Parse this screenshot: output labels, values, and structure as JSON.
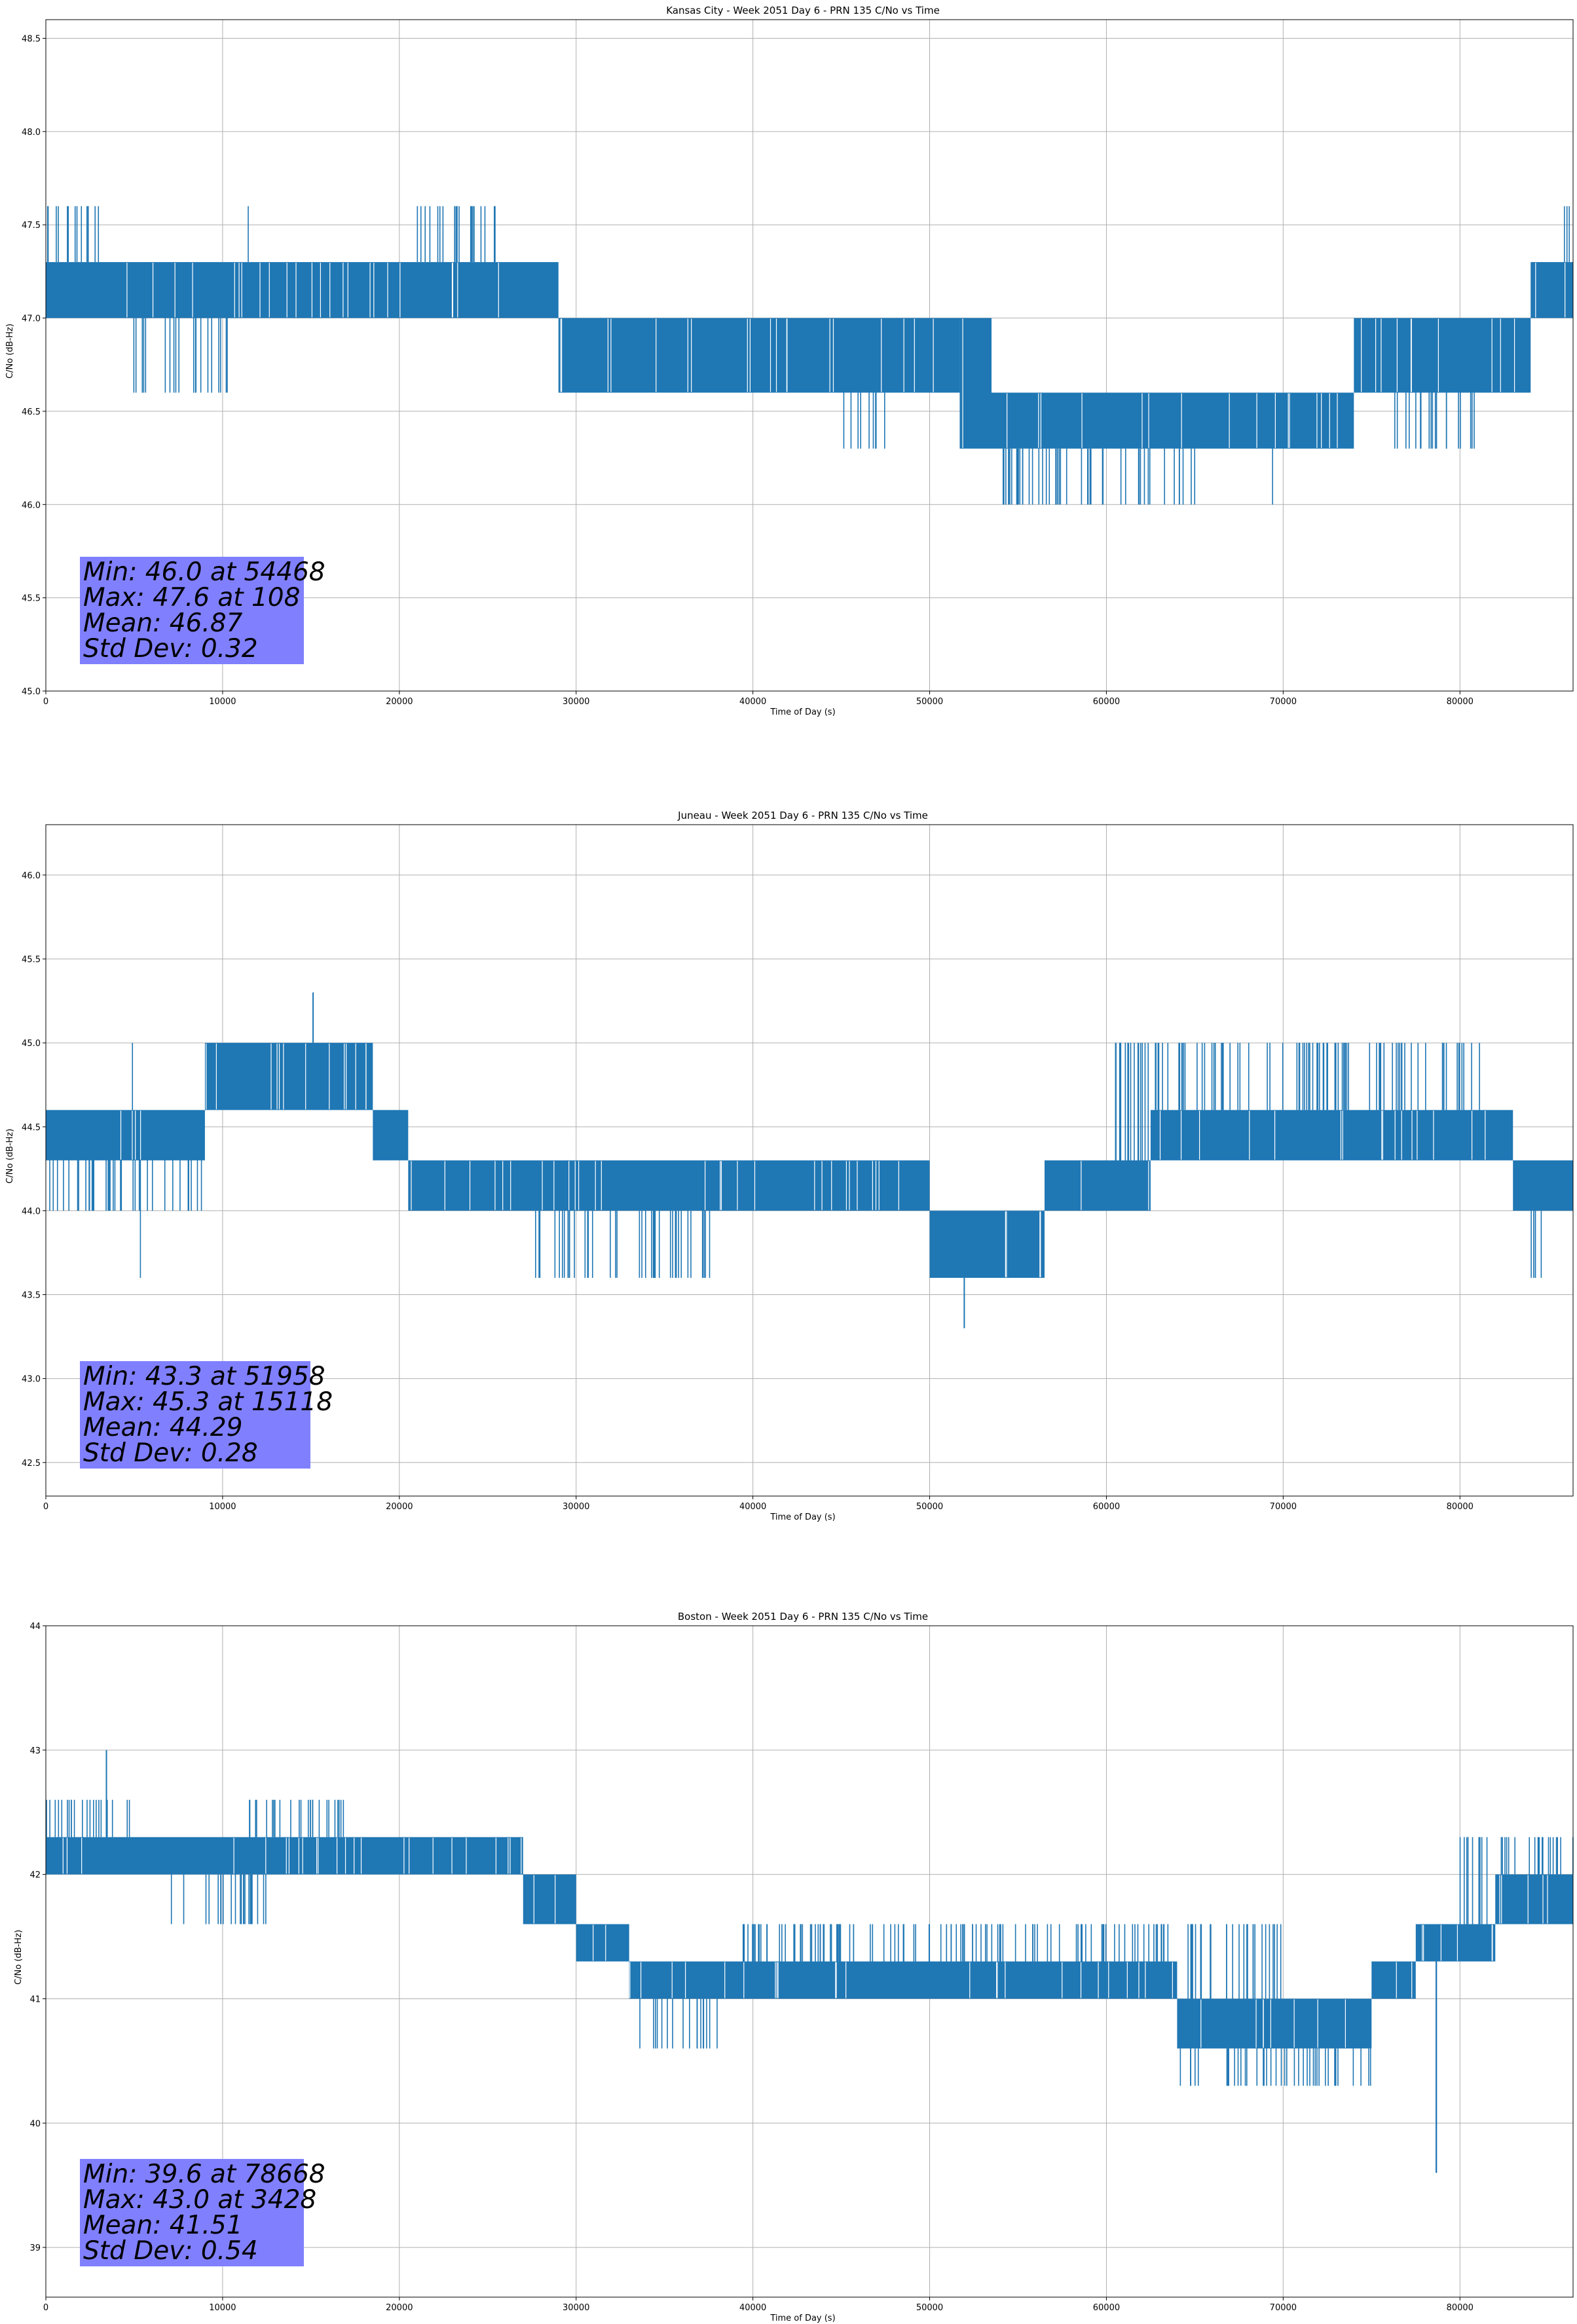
{
  "figure": {
    "background": "#ffffff",
    "series_color": "#1f77b4",
    "stats_box_color": "#8080ff"
  },
  "chart_data": [
    {
      "type": "line",
      "title": "Kansas City - Week 2051 Day 6 - PRN 135 C/No vs Time",
      "xlabel": "Time of Day (s)",
      "ylabel": "C/No (dB-Hz)",
      "xlim": [
        0,
        86400
      ],
      "ylim": [
        45.0,
        48.6
      ],
      "xticks": [
        0,
        10000,
        20000,
        30000,
        40000,
        50000,
        60000,
        70000,
        80000
      ],
      "yticks": [
        45.0,
        45.5,
        46.0,
        46.5,
        47.0,
        47.5,
        48.0,
        48.5
      ],
      "ytick_decimals": 1,
      "grid": true,
      "stats": [
        "Min: 46.0 at 54468",
        "Max: 47.6 at 108",
        "Mean: 46.87",
        "Std Dev: 0.32"
      ],
      "band_profile": [
        {
          "x_start": 0,
          "x_end": 29000,
          "low": 47.0,
          "high": 47.3
        },
        {
          "x_start": 29000,
          "x_end": 51700,
          "low": 46.6,
          "high": 47.0
        },
        {
          "x_start": 51700,
          "x_end": 53500,
          "low": 46.3,
          "high": 47.0
        },
        {
          "x_start": 53500,
          "x_end": 74000,
          "low": 46.3,
          "high": 46.6
        },
        {
          "x_start": 74000,
          "x_end": 84000,
          "low": 46.6,
          "high": 47.0
        },
        {
          "x_start": 84000,
          "x_end": 86400,
          "low": 47.0,
          "high": 47.3
        }
      ],
      "spikes_up": [
        {
          "x_start": 0,
          "x_end": 3000,
          "to": 47.6
        },
        {
          "x_start": 11400,
          "x_end": 11500,
          "to": 47.6
        },
        {
          "x_start": 21000,
          "x_end": 25500,
          "to": 47.6
        },
        {
          "x_start": 85500,
          "x_end": 86200,
          "to": 47.6
        }
      ],
      "spikes_down": [
        {
          "x_start": 4800,
          "x_end": 10300,
          "to": 46.6
        },
        {
          "x_start": 45000,
          "x_end": 47500,
          "to": 46.3
        },
        {
          "x_start": 54000,
          "x_end": 66000,
          "to": 46.0
        },
        {
          "x_start": 69300,
          "x_end": 69500,
          "to": 46.0
        },
        {
          "x_start": 76000,
          "x_end": 81000,
          "to": 46.3
        }
      ],
      "extreme_points": [
        {
          "x": 54468,
          "y": 46.0
        },
        {
          "x": 108,
          "y": 47.6
        }
      ]
    },
    {
      "type": "line",
      "title": "Juneau - Week 2051 Day 6 - PRN 135 C/No vs Time",
      "xlabel": "Time of Day (s)",
      "ylabel": "C/No (dB-Hz)",
      "xlim": [
        0,
        86400
      ],
      "ylim": [
        42.3,
        46.3
      ],
      "xticks": [
        0,
        10000,
        20000,
        30000,
        40000,
        50000,
        60000,
        70000,
        80000
      ],
      "yticks": [
        42.5,
        43.0,
        43.5,
        44.0,
        44.5,
        45.0,
        45.5,
        46.0
      ],
      "ytick_decimals": 1,
      "grid": true,
      "stats": [
        "Min: 43.3 at 51958",
        "Max: 45.3 at 15118",
        "Mean: 44.29",
        "Std Dev: 0.28"
      ],
      "band_profile": [
        {
          "x_start": 0,
          "x_end": 9000,
          "low": 44.3,
          "high": 44.6
        },
        {
          "x_start": 9000,
          "x_end": 18500,
          "low": 44.6,
          "high": 45.0
        },
        {
          "x_start": 18500,
          "x_end": 20500,
          "low": 44.3,
          "high": 44.6
        },
        {
          "x_start": 20500,
          "x_end": 50000,
          "low": 44.0,
          "high": 44.3
        },
        {
          "x_start": 50000,
          "x_end": 56500,
          "low": 43.6,
          "high": 44.0
        },
        {
          "x_start": 56500,
          "x_end": 62500,
          "low": 44.0,
          "high": 44.3
        },
        {
          "x_start": 62500,
          "x_end": 83000,
          "low": 44.3,
          "high": 44.6
        },
        {
          "x_start": 83000,
          "x_end": 86400,
          "low": 44.0,
          "high": 44.3
        }
      ],
      "spikes_up": [
        {
          "x_start": 4800,
          "x_end": 5000,
          "to": 45.0
        },
        {
          "x_start": 15100,
          "x_end": 15150,
          "to": 45.3
        },
        {
          "x_start": 60500,
          "x_end": 82500,
          "to": 45.0
        }
      ],
      "spikes_down": [
        {
          "x_start": 0,
          "x_end": 9000,
          "to": 44.0
        },
        {
          "x_start": 5300,
          "x_end": 5400,
          "to": 43.6
        },
        {
          "x_start": 27500,
          "x_end": 38000,
          "to": 43.6
        },
        {
          "x_start": 84000,
          "x_end": 85500,
          "to": 43.6
        }
      ],
      "extreme_points": [
        {
          "x": 51958,
          "y": 43.3
        },
        {
          "x": 15118,
          "y": 45.3
        }
      ]
    },
    {
      "type": "line",
      "title": "Boston - Week 2051 Day 6 - PRN 135 C/No vs Time",
      "xlabel": "Time of Day (s)",
      "ylabel": "C/No (dB-Hz)",
      "xlim": [
        0,
        86400
      ],
      "ylim": [
        38.6,
        44.0
      ],
      "xticks": [
        0,
        10000,
        20000,
        30000,
        40000,
        50000,
        60000,
        70000,
        80000
      ],
      "yticks": [
        39,
        40,
        41,
        42,
        43,
        44
      ],
      "ytick_decimals": 0,
      "grid": true,
      "stats": [
        "Min: 39.6 at 78668",
        "Max: 43.0 at 3428",
        "Mean: 41.51",
        "Std Dev: 0.54"
      ],
      "band_profile": [
        {
          "x_start": 0,
          "x_end": 27000,
          "low": 42.0,
          "high": 42.3
        },
        {
          "x_start": 27000,
          "x_end": 30000,
          "low": 41.6,
          "high": 42.0
        },
        {
          "x_start": 30000,
          "x_end": 33000,
          "low": 41.3,
          "high": 41.6
        },
        {
          "x_start": 33000,
          "x_end": 55500,
          "low": 41.0,
          "high": 41.3
        },
        {
          "x_start": 55500,
          "x_end": 64000,
          "low": 41.0,
          "high": 41.3
        },
        {
          "x_start": 64000,
          "x_end": 75000,
          "low": 40.6,
          "high": 41.0
        },
        {
          "x_start": 75000,
          "x_end": 77500,
          "low": 41.0,
          "high": 41.3
        },
        {
          "x_start": 77500,
          "x_end": 82000,
          "low": 41.3,
          "high": 41.6
        },
        {
          "x_start": 82000,
          "x_end": 86400,
          "low": 41.6,
          "high": 42.0
        }
      ],
      "spikes_up": [
        {
          "x_start": 0,
          "x_end": 5000,
          "to": 42.6
        },
        {
          "x_start": 3400,
          "x_end": 3450,
          "to": 43.0
        },
        {
          "x_start": 11500,
          "x_end": 17000,
          "to": 42.6
        },
        {
          "x_start": 39000,
          "x_end": 70000,
          "to": 41.6
        },
        {
          "x_start": 80000,
          "x_end": 86400,
          "to": 42.3
        }
      ],
      "spikes_down": [
        {
          "x_start": 7000,
          "x_end": 13000,
          "to": 41.6
        },
        {
          "x_start": 33500,
          "x_end": 38000,
          "to": 40.6
        },
        {
          "x_start": 64000,
          "x_end": 75000,
          "to": 40.3
        },
        {
          "x_start": 78600,
          "x_end": 78700,
          "to": 39.6
        }
      ],
      "extreme_points": [
        {
          "x": 78668,
          "y": 39.6
        },
        {
          "x": 3428,
          "y": 43.0
        }
      ]
    }
  ]
}
